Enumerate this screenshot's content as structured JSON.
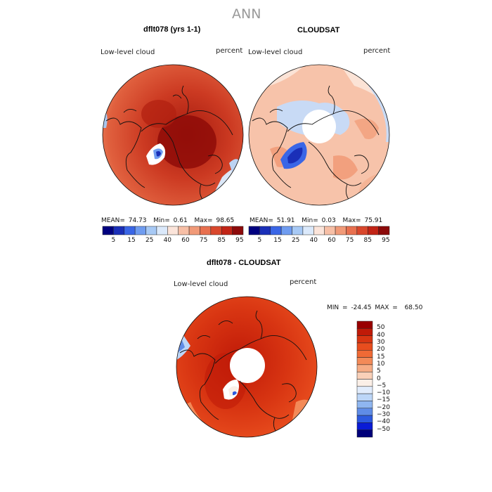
{
  "page": {
    "season": "ANN"
  },
  "panels": [
    {
      "title": "dflt078 (yrs 1-1)",
      "variable": "Low-level cloud",
      "units": "percent",
      "stats": {
        "mean_label": "MEAN=",
        "mean": "74.73",
        "min_label": "Min=",
        "min": "0.61",
        "max_label": "Max=",
        "max": "98.65"
      },
      "colorbar_ticks": [
        "5",
        "15",
        "25",
        "40",
        "60",
        "75",
        "85",
        "95"
      ],
      "colorbar_colors": [
        "#00007f",
        "#1a2fb8",
        "#3a66e6",
        "#6f9cf0",
        "#a7c9f5",
        "#dbe9fb",
        "#fbe4da",
        "#f7bfa6",
        "#f19a78",
        "#e8704f",
        "#d9472c",
        "#c22416",
        "#8c0a0a"
      ],
      "map_pole_gap": false
    },
    {
      "title": "CLOUDSAT",
      "variable": "Low-level cloud",
      "units": "percent",
      "stats": {
        "mean_label": "MEAN=",
        "mean": "51.91",
        "min_label": "Min=",
        "min": "0.03",
        "max_label": "Max=",
        "max": "75.91"
      },
      "colorbar_ticks": [
        "5",
        "15",
        "25",
        "40",
        "60",
        "75",
        "85",
        "95"
      ],
      "colorbar_colors": [
        "#00007f",
        "#1a2fb8",
        "#3a66e6",
        "#6f9cf0",
        "#a7c9f5",
        "#dbe9fb",
        "#fbe4da",
        "#f7bfa6",
        "#f19a78",
        "#e8704f",
        "#d9472c",
        "#c22416",
        "#8c0a0a"
      ],
      "map_pole_gap": true
    },
    {
      "title": "dflt078 - CLOUDSAT",
      "variable": "Low-level cloud",
      "units": "percent",
      "minmax": {
        "min_label": "MIN =",
        "min": "-24.45",
        "max_label": "MAX =",
        "max": "68.50"
      },
      "colorbar_ticks": [
        "50",
        "40",
        "30",
        "20",
        "15",
        "10",
        "5",
        "0",
        "−5",
        "−10",
        "−15",
        "−20",
        "−30",
        "−40",
        "−50"
      ],
      "colorbar_colors": [
        "#990000",
        "#c01a08",
        "#d83512",
        "#e84d1e",
        "#f06a35",
        "#f38a58",
        "#f6ac85",
        "#f9d0b8",
        "#fbefe7",
        "#e1ecfc",
        "#bcd6f8",
        "#8fb6f0",
        "#5f8ce6",
        "#2d5adf",
        "#0a1bd6",
        "#00007a"
      ],
      "map_pole_gap": true
    }
  ]
}
